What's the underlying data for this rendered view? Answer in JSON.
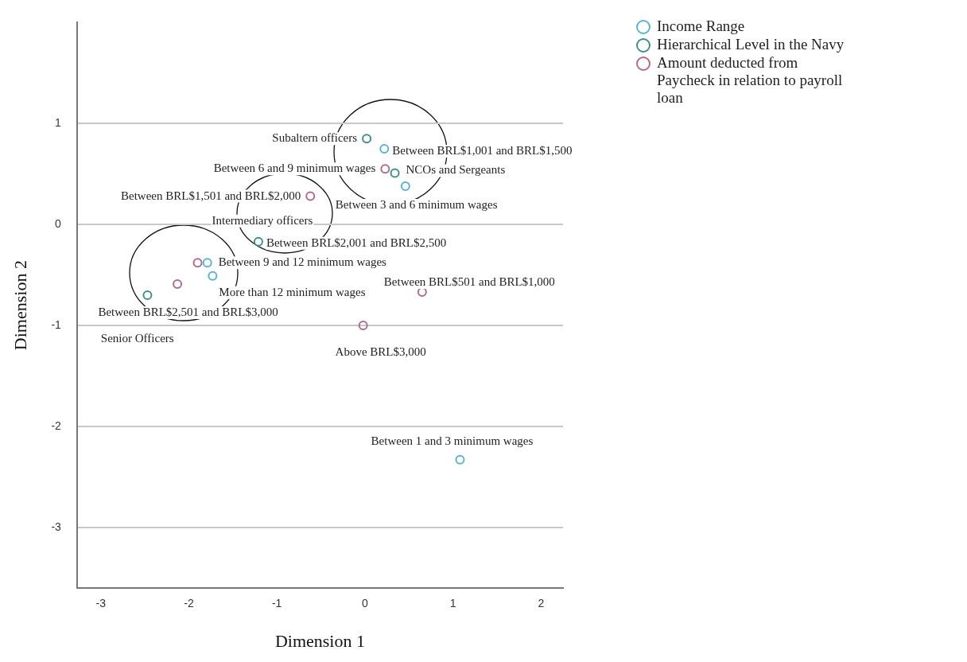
{
  "chart_data": {
    "type": "scatter",
    "xlabel": "Dimension 1",
    "ylabel": "Dimension 2",
    "xlim": [
      -3.27,
      2.25
    ],
    "xticks": [
      -3,
      -2,
      -1,
      0,
      1,
      2
    ],
    "ylim": [
      -3.6,
      2.0
    ],
    "yticks": [
      -3,
      -2,
      -1,
      0,
      1
    ],
    "grid": "y",
    "legend": "top right",
    "marker": "circle",
    "series": [
      {
        "name": "Income Range",
        "color": "#5ab4cc",
        "x": [
          0.22,
          0.46,
          -1.79,
          -1.73,
          1.08
        ],
        "values": [
          0.75,
          0.38,
          -0.38,
          -0.51,
          -2.33
        ]
      },
      {
        "name": "Hierarchical Level in the Navy",
        "color": "#3f8f8a",
        "x": [
          0.02,
          0.34,
          -1.21,
          -2.47
        ],
        "values": [
          0.85,
          0.51,
          -0.17,
          -0.7
        ]
      },
      {
        "name": "Amount deducted from Paycheck in relation to payroll loan",
        "color": "#b06a8e",
        "x": [
          0.23,
          -0.62,
          -1.9,
          -2.13,
          0.65,
          -0.02
        ],
        "values": [
          0.55,
          0.28,
          -0.38,
          -0.59,
          -0.67,
          -1.0
        ]
      }
    ],
    "annotations": [
      {
        "text": "Subaltern officers",
        "x": 0.02,
        "y": 0.85
      },
      {
        "text": "Between BRL$1,001 and BRL$1,500",
        "x": 0.22,
        "y": 0.75
      },
      {
        "text": "Between 6 and 9 minimum wages",
        "x": 0.23,
        "y": 0.55
      },
      {
        "text": "NCOs and Sergeants",
        "x": 0.34,
        "y": 0.51
      },
      {
        "text": "Between 3 and 6 minimum wages",
        "x": 0.46,
        "y": 0.38
      },
      {
        "text": "Between BRL$1,501 and BRL$2,000",
        "x": -0.62,
        "y": 0.28
      },
      {
        "text": "Intermediary officers",
        "x": -1.21,
        "y": -0.17
      },
      {
        "text": "Between BRL$2,001 and BRL$2,500",
        "x": -1.21,
        "y": -0.17
      },
      {
        "text": "Between 9 and 12 minimum wages",
        "x": -1.79,
        "y": -0.38
      },
      {
        "text": "More than 12 minimum wages",
        "x": -1.73,
        "y": -0.51
      },
      {
        "text": "Between BRL$2,501 and BRL$3,000",
        "x": -2.47,
        "y": -0.7
      },
      "Senior Officers",
      {
        "text": "Between BRL$501 and BRL$1,000",
        "x": 0.65,
        "y": -0.67
      },
      {
        "text": "Above BRL$3,000",
        "x": -0.02,
        "y": -1.0
      },
      {
        "text": "Between 1 and 3 minimum wages",
        "x": 1.08,
        "y": -2.33
      }
    ]
  }
}
